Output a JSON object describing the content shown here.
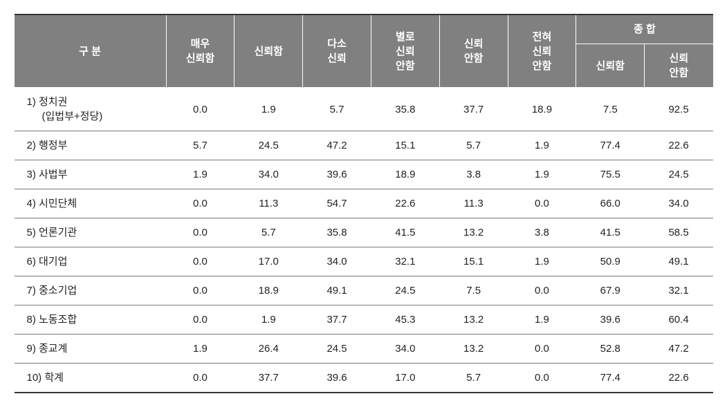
{
  "header": {
    "category": "구   분",
    "c1": "매우\n신뢰함",
    "c2": "신뢰함",
    "c3": "다소\n신뢰",
    "c4": "별로\n신뢰\n안함",
    "c5": "신뢰\n안함",
    "c6": "전혀\n신뢰\n안함",
    "group": "종   합",
    "g1": "신뢰함",
    "g2": "신뢰\n안함"
  },
  "rows": [
    {
      "label": "1)  정치권",
      "sub": "(입법부+정당)",
      "v": [
        "0.0",
        "1.9",
        "5.7",
        "35.8",
        "37.7",
        "18.9",
        "7.5",
        "92.5"
      ]
    },
    {
      "label": "2)  행정부",
      "v": [
        "5.7",
        "24.5",
        "47.2",
        "15.1",
        "5.7",
        "1.9",
        "77.4",
        "22.6"
      ]
    },
    {
      "label": "3)  사법부",
      "v": [
        "1.9",
        "34.0",
        "39.6",
        "18.9",
        "3.8",
        "1.9",
        "75.5",
        "24.5"
      ]
    },
    {
      "label": "4)  시민단체",
      "v": [
        "0.0",
        "11.3",
        "54.7",
        "22.6",
        "11.3",
        "0.0",
        "66.0",
        "34.0"
      ]
    },
    {
      "label": "5)  언론기관",
      "v": [
        "0.0",
        "5.7",
        "35.8",
        "41.5",
        "13.2",
        "3.8",
        "41.5",
        "58.5"
      ]
    },
    {
      "label": "6)  대기업",
      "v": [
        "0.0",
        "17.0",
        "34.0",
        "32.1",
        "15.1",
        "1.9",
        "50.9",
        "49.1"
      ]
    },
    {
      "label": "7)  중소기업",
      "v": [
        "0.0",
        "18.9",
        "49.1",
        "24.5",
        "7.5",
        "0.0",
        "67.9",
        "32.1"
      ]
    },
    {
      "label": "8)  노동조합",
      "v": [
        "0.0",
        "1.9",
        "37.7",
        "45.3",
        "13.2",
        "1.9",
        "39.6",
        "60.4"
      ]
    },
    {
      "label": "9)  종교계",
      "v": [
        "1.9",
        "26.4",
        "24.5",
        "34.0",
        "13.2",
        "0.0",
        "52.8",
        "47.2"
      ]
    },
    {
      "label": "10)  학계",
      "v": [
        "0.0",
        "37.7",
        "39.6",
        "17.0",
        "5.7",
        "0.0",
        "77.4",
        "22.6"
      ]
    }
  ],
  "style": {
    "header_bg": "#808080",
    "header_fg": "#ffffff",
    "border_color": "#777777",
    "font_family": "Malgun Gothic",
    "col_widths": {
      "category": 200,
      "value": 90
    },
    "font_size": 15
  }
}
